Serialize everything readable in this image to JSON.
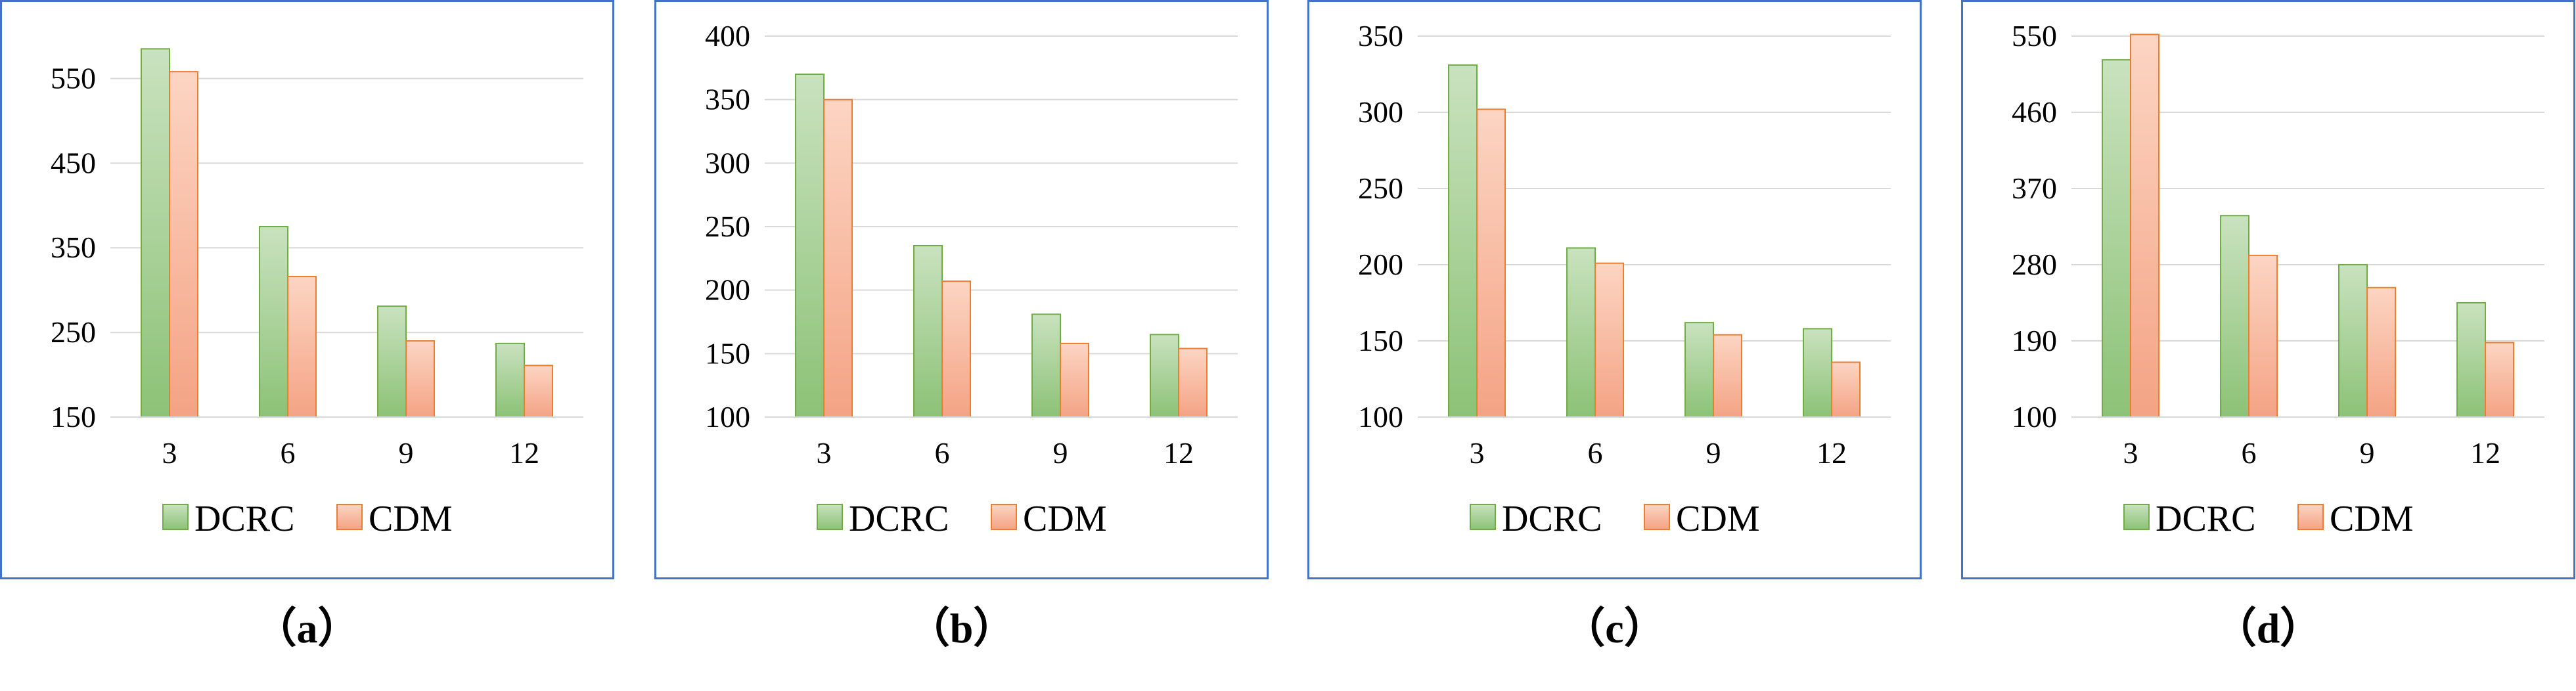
{
  "colors": {
    "dcrc_fill_top": "#C9E2BF",
    "dcrc_fill_bottom": "#8CC276",
    "dcrc_stroke": "#70AD47",
    "cdm_fill_top": "#FCD5C3",
    "cdm_fill_bottom": "#F4A384",
    "cdm_stroke": "#ED7D31",
    "grid": "#D9D9D9",
    "frame": "#4472C4"
  },
  "chart_data": [
    {
      "type": "bar",
      "caption": "（a）",
      "categories": [
        "3",
        "6",
        "9",
        "12"
      ],
      "series": [
        {
          "name": "DCRC",
          "values": [
            585,
            375,
            281,
            237
          ]
        },
        {
          "name": "CDM",
          "values": [
            558,
            316,
            240,
            211
          ]
        }
      ],
      "ylim": [
        150,
        600
      ],
      "yticks": [
        150,
        250,
        350,
        450,
        550
      ],
      "legend": "bottom",
      "grid": true
    },
    {
      "type": "bar",
      "caption": "（b）",
      "categories": [
        "3",
        "6",
        "9",
        "12"
      ],
      "series": [
        {
          "name": "DCRC",
          "values": [
            370,
            235,
            181,
            165
          ]
        },
        {
          "name": "CDM",
          "values": [
            350,
            207,
            158,
            154
          ]
        }
      ],
      "ylim": [
        100,
        400
      ],
      "yticks": [
        100,
        150,
        200,
        250,
        300,
        350,
        400
      ],
      "legend": "bottom",
      "grid": true
    },
    {
      "type": "bar",
      "caption": "（c）",
      "categories": [
        "3",
        "6",
        "9",
        "12"
      ],
      "series": [
        {
          "name": "DCRC",
          "values": [
            331,
            211,
            162,
            158
          ]
        },
        {
          "name": "CDM",
          "values": [
            302,
            201,
            154,
            136
          ]
        }
      ],
      "ylim": [
        100,
        350
      ],
      "yticks": [
        100,
        150,
        200,
        250,
        300,
        350
      ],
      "legend": "bottom",
      "grid": true
    },
    {
      "type": "bar",
      "caption": "（d）",
      "categories": [
        "3",
        "6",
        "9",
        "12"
      ],
      "series": [
        {
          "name": "DCRC",
          "values": [
            522,
            338,
            280,
            235
          ]
        },
        {
          "name": "CDM",
          "values": [
            552,
            291,
            253,
            188
          ]
        }
      ],
      "ylim": [
        100,
        550
      ],
      "yticks": [
        100,
        190,
        280,
        370,
        460,
        550
      ],
      "legend": "bottom",
      "grid": true
    }
  ]
}
